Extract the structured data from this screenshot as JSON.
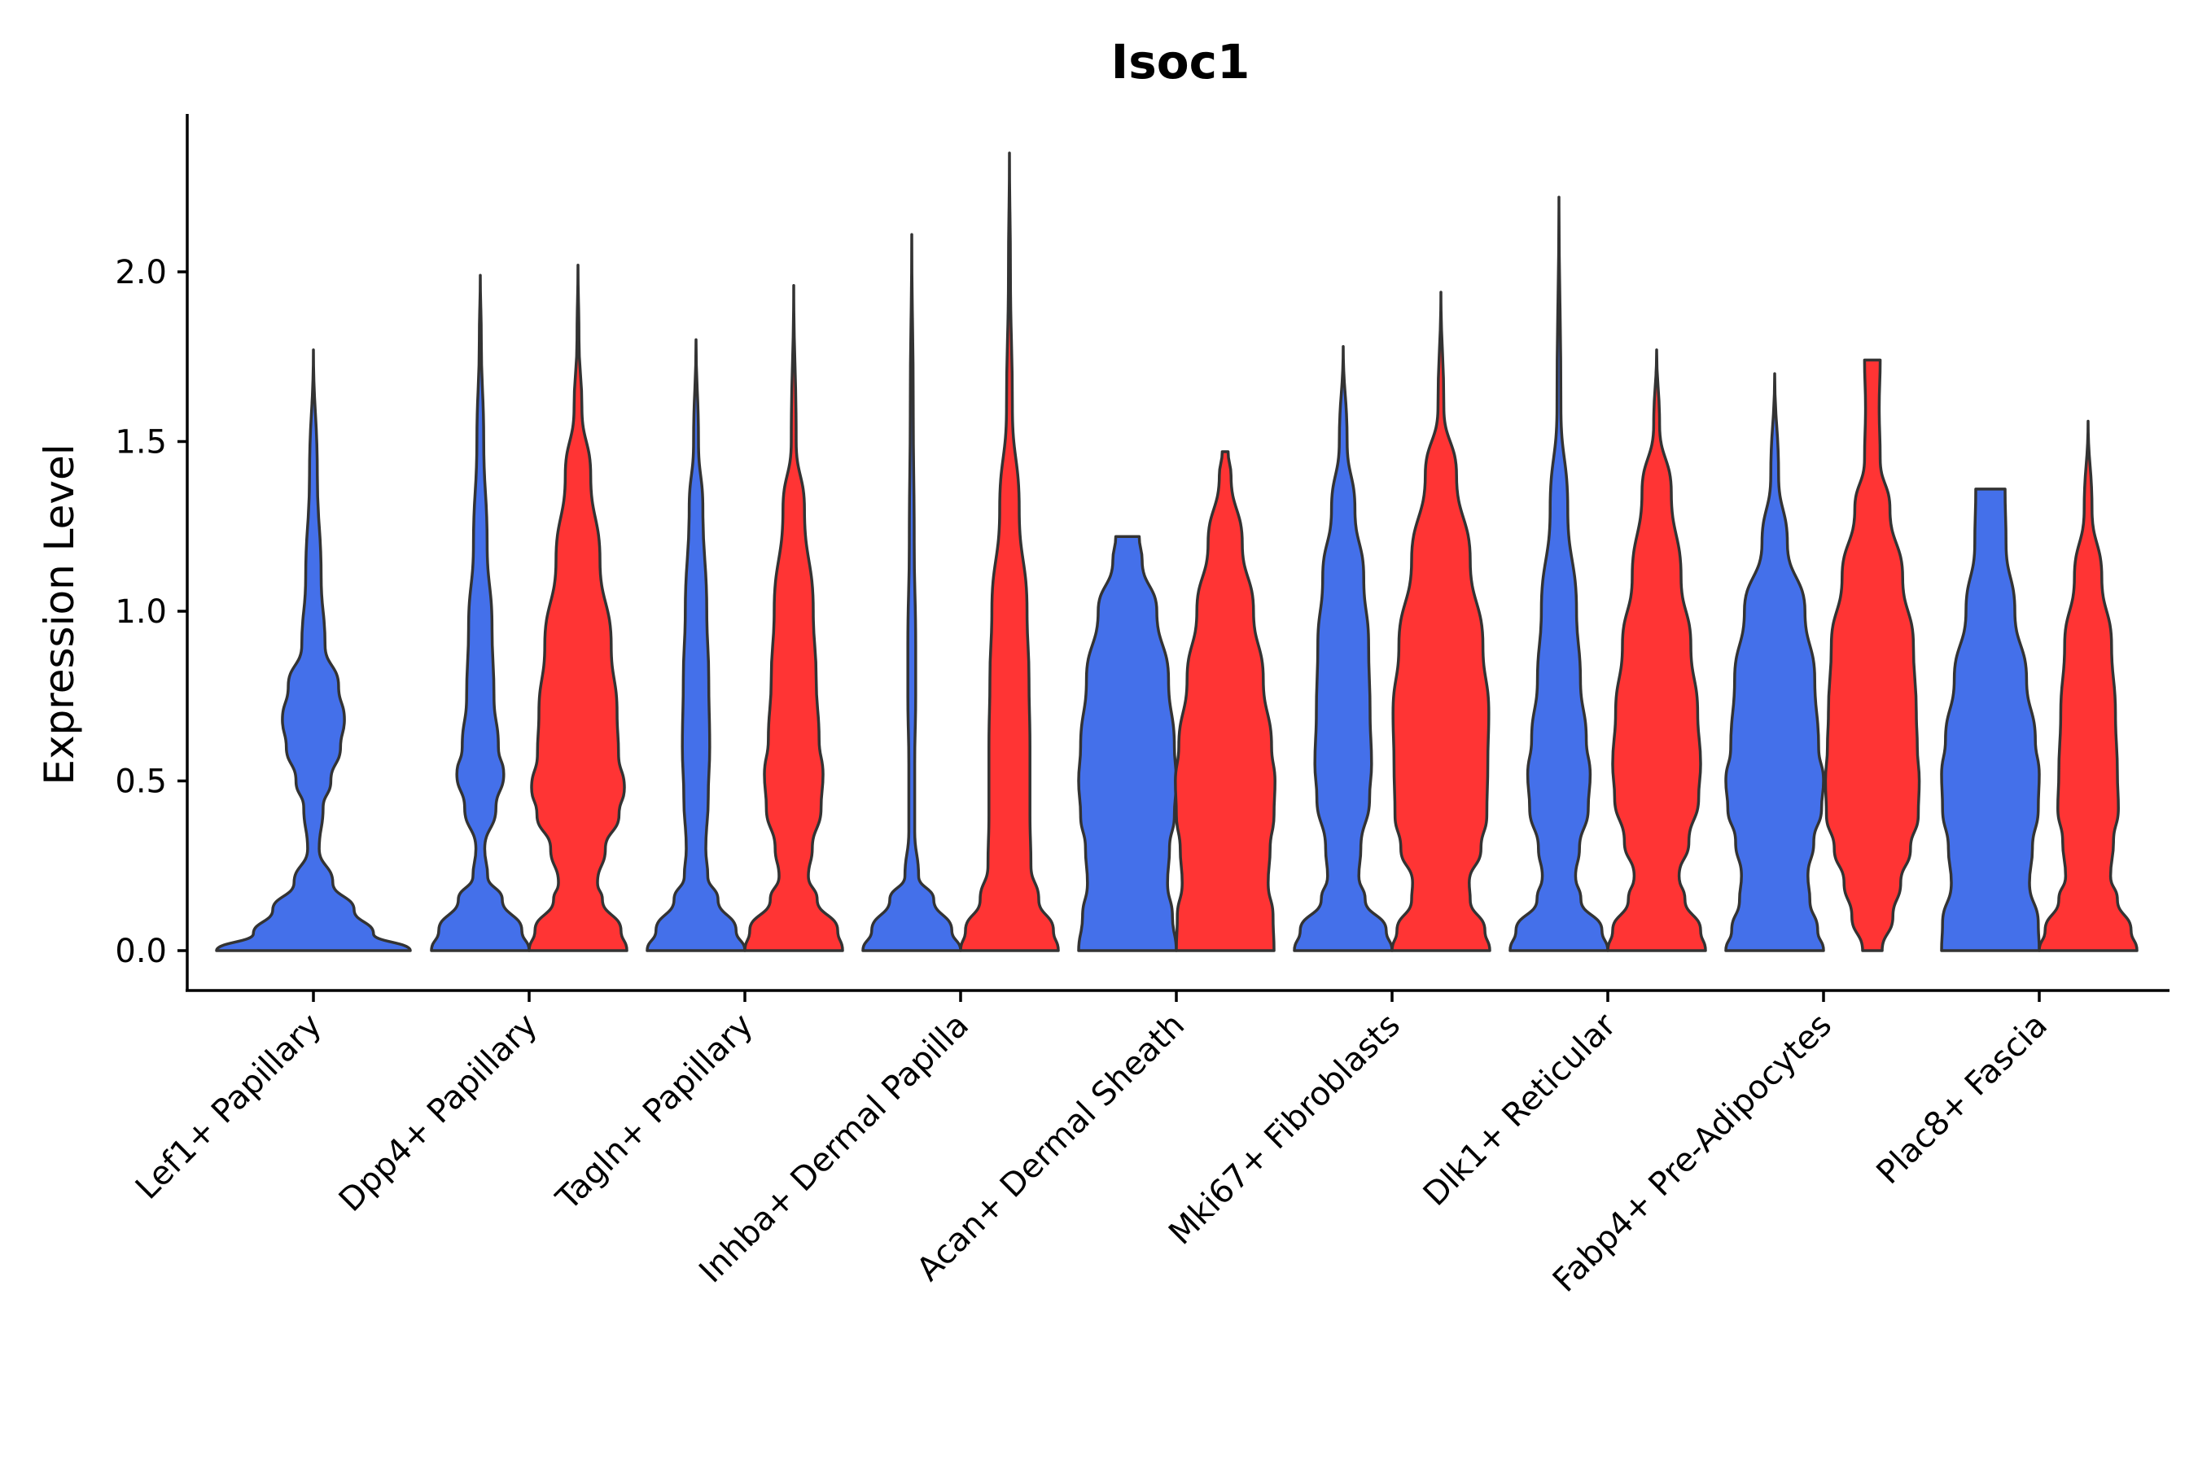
{
  "chart_data": {
    "type": "violin",
    "title": "Isoc1",
    "xlabel": "",
    "ylabel": "Expression Level",
    "ylim": [
      -0.12,
      2.45
    ],
    "yticks": [
      "0.0",
      "0.5",
      "1.0",
      "1.5",
      "2.0"
    ],
    "grid": false,
    "legend": "none",
    "colors": {
      "condition_a": "#4470EA",
      "condition_b": "#FF3434",
      "outline": "#333333"
    },
    "categories": [
      "Lef1+ Papillary",
      "Dpp4+ Papillary",
      "Tagln+ Papillary",
      "Inhba+ Dermal Papilla",
      "Acan+ Dermal Sheath",
      "Mki67+ Fibroblasts",
      "Dlk1+ Reticular",
      "Fabp4+ Pre-Adipocytes",
      "Plac8+ Fascia"
    ],
    "violins": [
      {
        "category": 0,
        "side": "center",
        "color": "#4470EA",
        "max": 1.77,
        "min": 0.0,
        "profile": [
          [
            0.0,
            1.0
          ],
          [
            0.05,
            0.62
          ],
          [
            0.12,
            0.42
          ],
          [
            0.2,
            0.2
          ],
          [
            0.3,
            0.06
          ],
          [
            0.42,
            0.1
          ],
          [
            0.5,
            0.18
          ],
          [
            0.6,
            0.28
          ],
          [
            0.68,
            0.32
          ],
          [
            0.78,
            0.26
          ],
          [
            0.9,
            0.12
          ],
          [
            1.1,
            0.08
          ],
          [
            1.4,
            0.04
          ],
          [
            1.77,
            0.0
          ]
        ]
      },
      {
        "category": 1,
        "side": "left",
        "color": "#4470EA",
        "max": 1.99,
        "min": 0.0,
        "profile": [
          [
            0.0,
            1.0
          ],
          [
            0.06,
            0.85
          ],
          [
            0.15,
            0.45
          ],
          [
            0.22,
            0.15
          ],
          [
            0.3,
            0.09
          ],
          [
            0.42,
            0.32
          ],
          [
            0.52,
            0.48
          ],
          [
            0.6,
            0.37
          ],
          [
            0.75,
            0.28
          ],
          [
            0.95,
            0.24
          ],
          [
            1.2,
            0.14
          ],
          [
            1.5,
            0.07
          ],
          [
            1.8,
            0.02
          ],
          [
            1.99,
            0.0
          ]
        ]
      },
      {
        "category": 1,
        "side": "right",
        "color": "#FF3434",
        "max": 2.02,
        "min": 0.0,
        "profile": [
          [
            0.0,
            1.0
          ],
          [
            0.06,
            0.88
          ],
          [
            0.15,
            0.5
          ],
          [
            0.2,
            0.4
          ],
          [
            0.3,
            0.56
          ],
          [
            0.4,
            0.84
          ],
          [
            0.48,
            0.95
          ],
          [
            0.58,
            0.83
          ],
          [
            0.7,
            0.8
          ],
          [
            0.9,
            0.68
          ],
          [
            1.15,
            0.45
          ],
          [
            1.4,
            0.26
          ],
          [
            1.6,
            0.08
          ],
          [
            1.8,
            0.02
          ],
          [
            2.02,
            0.0
          ]
        ]
      },
      {
        "category": 2,
        "side": "left",
        "color": "#4470EA",
        "max": 1.8,
        "min": 0.0,
        "profile": [
          [
            0.0,
            1.0
          ],
          [
            0.06,
            0.82
          ],
          [
            0.15,
            0.45
          ],
          [
            0.22,
            0.24
          ],
          [
            0.3,
            0.2
          ],
          [
            0.45,
            0.25
          ],
          [
            0.6,
            0.28
          ],
          [
            0.8,
            0.26
          ],
          [
            1.0,
            0.22
          ],
          [
            1.3,
            0.14
          ],
          [
            1.5,
            0.05
          ],
          [
            1.8,
            0.0
          ]
        ]
      },
      {
        "category": 2,
        "side": "right",
        "color": "#FF3434",
        "max": 1.96,
        "min": 0.0,
        "profile": [
          [
            0.0,
            1.0
          ],
          [
            0.06,
            0.9
          ],
          [
            0.15,
            0.48
          ],
          [
            0.22,
            0.3
          ],
          [
            0.3,
            0.38
          ],
          [
            0.42,
            0.56
          ],
          [
            0.52,
            0.6
          ],
          [
            0.62,
            0.52
          ],
          [
            0.8,
            0.46
          ],
          [
            1.0,
            0.4
          ],
          [
            1.3,
            0.22
          ],
          [
            1.5,
            0.05
          ],
          [
            1.96,
            0.0
          ]
        ]
      },
      {
        "category": 3,
        "side": "left",
        "color": "#4470EA",
        "max": 2.11,
        "min": 0.0,
        "profile": [
          [
            0.0,
            1.0
          ],
          [
            0.06,
            0.82
          ],
          [
            0.15,
            0.45
          ],
          [
            0.22,
            0.14
          ],
          [
            0.35,
            0.06
          ],
          [
            0.55,
            0.06
          ],
          [
            0.75,
            0.08
          ],
          [
            0.9,
            0.08
          ],
          [
            1.2,
            0.05
          ],
          [
            1.6,
            0.03
          ],
          [
            2.11,
            0.0
          ]
        ]
      },
      {
        "category": 3,
        "side": "right",
        "color": "#FF3434",
        "max": 2.35,
        "min": 0.0,
        "profile": [
          [
            0.0,
            1.0
          ],
          [
            0.06,
            0.9
          ],
          [
            0.15,
            0.6
          ],
          [
            0.25,
            0.44
          ],
          [
            0.4,
            0.42
          ],
          [
            0.6,
            0.42
          ],
          [
            0.8,
            0.4
          ],
          [
            1.0,
            0.36
          ],
          [
            1.3,
            0.2
          ],
          [
            1.6,
            0.06
          ],
          [
            2.0,
            0.02
          ],
          [
            2.35,
            0.0
          ]
        ]
      },
      {
        "category": 4,
        "side": "left",
        "color": "#4470EA",
        "max": 1.22,
        "min": 0.0,
        "profile": [
          [
            0.0,
            1.0
          ],
          [
            0.1,
            0.92
          ],
          [
            0.2,
            0.82
          ],
          [
            0.3,
            0.86
          ],
          [
            0.4,
            0.96
          ],
          [
            0.5,
            1.0
          ],
          [
            0.6,
            0.96
          ],
          [
            0.8,
            0.84
          ],
          [
            1.0,
            0.6
          ],
          [
            1.15,
            0.3
          ],
          [
            1.22,
            0.24
          ]
        ]
      },
      {
        "category": 4,
        "side": "right",
        "color": "#FF3434",
        "max": 1.47,
        "min": 0.0,
        "profile": [
          [
            0.0,
            1.0
          ],
          [
            0.1,
            0.98
          ],
          [
            0.2,
            0.88
          ],
          [
            0.3,
            0.92
          ],
          [
            0.4,
            1.0
          ],
          [
            0.5,
            1.02
          ],
          [
            0.6,
            0.95
          ],
          [
            0.8,
            0.78
          ],
          [
            1.0,
            0.58
          ],
          [
            1.2,
            0.35
          ],
          [
            1.4,
            0.12
          ],
          [
            1.47,
            0.06
          ]
        ]
      },
      {
        "category": 5,
        "side": "left",
        "color": "#4470EA",
        "max": 1.78,
        "min": 0.0,
        "profile": [
          [
            0.0,
            1.0
          ],
          [
            0.06,
            0.88
          ],
          [
            0.15,
            0.45
          ],
          [
            0.22,
            0.32
          ],
          [
            0.3,
            0.36
          ],
          [
            0.45,
            0.54
          ],
          [
            0.55,
            0.58
          ],
          [
            0.7,
            0.55
          ],
          [
            0.9,
            0.52
          ],
          [
            1.1,
            0.42
          ],
          [
            1.3,
            0.24
          ],
          [
            1.5,
            0.08
          ],
          [
            1.78,
            0.0
          ]
        ]
      },
      {
        "category": 5,
        "side": "right",
        "color": "#FF3434",
        "max": 1.94,
        "min": 0.0,
        "profile": [
          [
            0.0,
            1.0
          ],
          [
            0.06,
            0.9
          ],
          [
            0.15,
            0.6
          ],
          [
            0.2,
            0.58
          ],
          [
            0.3,
            0.82
          ],
          [
            0.4,
            0.94
          ],
          [
            0.55,
            0.96
          ],
          [
            0.7,
            0.98
          ],
          [
            0.9,
            0.86
          ],
          [
            1.15,
            0.6
          ],
          [
            1.4,
            0.32
          ],
          [
            1.6,
            0.06
          ],
          [
            1.94,
            0.0
          ]
        ]
      },
      {
        "category": 6,
        "side": "left",
        "color": "#4470EA",
        "max": 2.22,
        "min": 0.0,
        "profile": [
          [
            0.0,
            1.0
          ],
          [
            0.06,
            0.88
          ],
          [
            0.15,
            0.45
          ],
          [
            0.22,
            0.34
          ],
          [
            0.3,
            0.42
          ],
          [
            0.42,
            0.6
          ],
          [
            0.52,
            0.64
          ],
          [
            0.62,
            0.56
          ],
          [
            0.8,
            0.44
          ],
          [
            1.0,
            0.36
          ],
          [
            1.3,
            0.18
          ],
          [
            1.6,
            0.04
          ],
          [
            2.22,
            0.0
          ]
        ]
      },
      {
        "category": 6,
        "side": "right",
        "color": "#FF3434",
        "max": 1.77,
        "min": 0.0,
        "profile": [
          [
            0.0,
            1.0
          ],
          [
            0.06,
            0.9
          ],
          [
            0.15,
            0.58
          ],
          [
            0.22,
            0.46
          ],
          [
            0.32,
            0.66
          ],
          [
            0.45,
            0.86
          ],
          [
            0.55,
            0.9
          ],
          [
            0.7,
            0.84
          ],
          [
            0.9,
            0.7
          ],
          [
            1.1,
            0.5
          ],
          [
            1.35,
            0.3
          ],
          [
            1.55,
            0.06
          ],
          [
            1.77,
            0.0
          ]
        ]
      },
      {
        "category": 7,
        "side": "left",
        "color": "#4470EA",
        "max": 1.7,
        "min": 0.0,
        "profile": [
          [
            0.0,
            1.0
          ],
          [
            0.06,
            0.88
          ],
          [
            0.15,
            0.72
          ],
          [
            0.22,
            0.68
          ],
          [
            0.32,
            0.8
          ],
          [
            0.42,
            0.96
          ],
          [
            0.5,
            1.0
          ],
          [
            0.6,
            0.9
          ],
          [
            0.8,
            0.82
          ],
          [
            1.0,
            0.62
          ],
          [
            1.2,
            0.26
          ],
          [
            1.4,
            0.08
          ],
          [
            1.7,
            0.0
          ]
        ]
      },
      {
        "category": 7,
        "side": "right",
        "color": "#FF3434",
        "max": 1.74,
        "min": 0.0,
        "profile": [
          [
            0.0,
            0.2
          ],
          [
            0.1,
            0.42
          ],
          [
            0.2,
            0.58
          ],
          [
            0.3,
            0.78
          ],
          [
            0.4,
            0.94
          ],
          [
            0.5,
            0.96
          ],
          [
            0.6,
            0.92
          ],
          [
            0.7,
            0.9
          ],
          [
            0.9,
            0.84
          ],
          [
            1.1,
            0.62
          ],
          [
            1.3,
            0.36
          ],
          [
            1.45,
            0.16
          ],
          [
            1.6,
            0.14
          ],
          [
            1.74,
            0.16
          ]
        ]
      },
      {
        "category": 8,
        "side": "left",
        "color": "#4470EA",
        "max": 1.36,
        "min": 0.0,
        "profile": [
          [
            0.0,
            1.0
          ],
          [
            0.08,
            0.98
          ],
          [
            0.2,
            0.8
          ],
          [
            0.3,
            0.86
          ],
          [
            0.42,
            0.98
          ],
          [
            0.52,
            1.0
          ],
          [
            0.62,
            0.92
          ],
          [
            0.8,
            0.74
          ],
          [
            1.0,
            0.5
          ],
          [
            1.2,
            0.32
          ],
          [
            1.36,
            0.3
          ]
        ]
      },
      {
        "category": 8,
        "side": "right",
        "color": "#FF3434",
        "max": 1.56,
        "min": 0.0,
        "profile": [
          [
            0.0,
            1.0
          ],
          [
            0.06,
            0.88
          ],
          [
            0.15,
            0.6
          ],
          [
            0.22,
            0.46
          ],
          [
            0.32,
            0.52
          ],
          [
            0.42,
            0.62
          ],
          [
            0.52,
            0.6
          ],
          [
            0.7,
            0.56
          ],
          [
            0.9,
            0.48
          ],
          [
            1.1,
            0.28
          ],
          [
            1.3,
            0.08
          ],
          [
            1.56,
            0.0
          ]
        ]
      }
    ]
  }
}
